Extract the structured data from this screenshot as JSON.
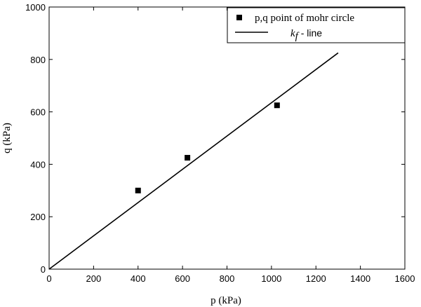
{
  "chart_data": {
    "type": "scatter",
    "xlabel": "p (kPa)",
    "ylabel": "q (kPa)",
    "xlim": [
      0,
      1600
    ],
    "ylim": [
      0,
      1000
    ],
    "xticks": [
      0,
      200,
      400,
      600,
      800,
      1000,
      1200,
      1400,
      1600
    ],
    "yticks": [
      0,
      200,
      400,
      600,
      800,
      1000
    ],
    "grid": false,
    "legend_position": "top-right",
    "series": [
      {
        "name": "p,q point of  mohr circle",
        "type": "scatter",
        "marker": "square",
        "color": "#000000",
        "x": [
          400,
          622,
          1025
        ],
        "y": [
          300,
          425,
          625
        ]
      },
      {
        "name_prefix": "k",
        "name_subscript": "f",
        "name_suffix": " - line",
        "type": "line",
        "color": "#000000",
        "x": [
          0,
          1300
        ],
        "y": [
          0,
          825
        ]
      }
    ]
  }
}
